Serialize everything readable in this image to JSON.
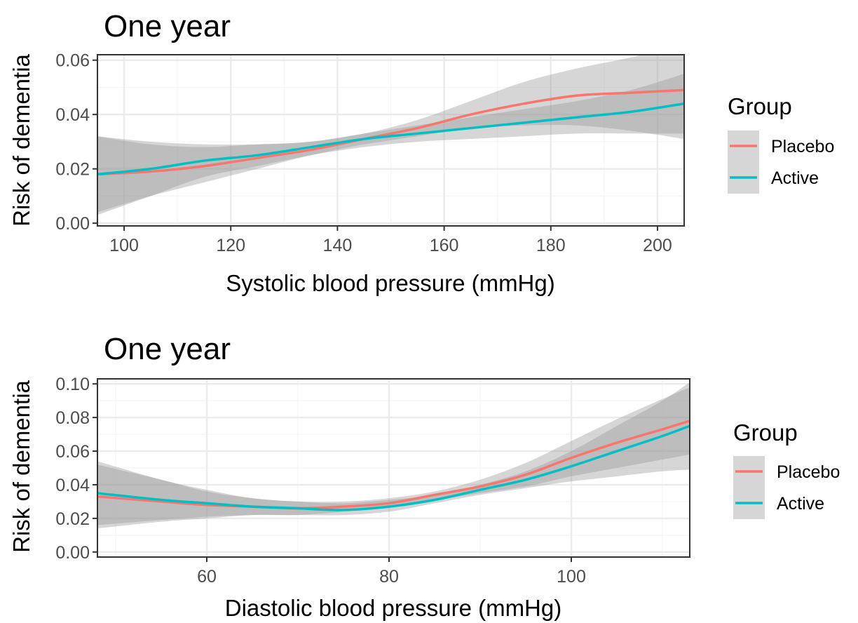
{
  "colors": {
    "placebo": "#F8766D",
    "active": "#00BFC4",
    "ribbon": "#999999",
    "grid_major": "#EBEBEB",
    "grid_minor": "#F5F5F5",
    "border": "#333333"
  },
  "chart_data": [
    {
      "type": "line",
      "title": "One year",
      "xlabel": "Systolic blood pressure (mmHg)",
      "ylabel": "Risk of dementia",
      "xlim": [
        95,
        205
      ],
      "ylim": [
        -0.001,
        0.062
      ],
      "xticks": [
        100,
        120,
        140,
        160,
        180,
        200
      ],
      "xtick_labels": [
        "100",
        "120",
        "140",
        "160",
        "180",
        "200"
      ],
      "yticks": [
        0.0,
        0.02,
        0.04,
        0.06
      ],
      "ytick_labels": [
        "0.00",
        "0.02",
        "0.04",
        "0.06"
      ],
      "grid": true,
      "legend": {
        "title": "Group",
        "position": "right",
        "entries": [
          "Placebo",
          "Active"
        ]
      },
      "x": [
        95,
        105,
        115,
        125,
        135,
        145,
        155,
        165,
        175,
        185,
        195,
        205
      ],
      "series": [
        {
          "name": "Placebo",
          "values": [
            0.018,
            0.019,
            0.021,
            0.024,
            0.027,
            0.031,
            0.035,
            0.04,
            0.044,
            0.047,
            0.048,
            0.049
          ],
          "lower": [
            0.004,
            0.01,
            0.015,
            0.02,
            0.025,
            0.029,
            0.032,
            0.035,
            0.036,
            0.036,
            0.034,
            0.031
          ],
          "upper": [
            0.032,
            0.029,
            0.028,
            0.029,
            0.03,
            0.033,
            0.038,
            0.045,
            0.052,
            0.057,
            0.061,
            0.066
          ]
        },
        {
          "name": "Active",
          "values": [
            0.018,
            0.02,
            0.023,
            0.025,
            0.028,
            0.031,
            0.033,
            0.035,
            0.037,
            0.039,
            0.041,
            0.044
          ],
          "lower": [
            0.003,
            0.01,
            0.017,
            0.021,
            0.025,
            0.028,
            0.03,
            0.031,
            0.032,
            0.033,
            0.033,
            0.033
          ],
          "upper": [
            0.032,
            0.03,
            0.029,
            0.029,
            0.03,
            0.033,
            0.036,
            0.039,
            0.042,
            0.045,
            0.049,
            0.055
          ]
        }
      ]
    },
    {
      "type": "line",
      "title": "One year",
      "xlabel": "Diastolic blood pressure (mmHg)",
      "ylabel": "Risk of dementia",
      "xlim": [
        48,
        113
      ],
      "ylim": [
        -0.003,
        0.103
      ],
      "xticks": [
        60,
        80,
        100
      ],
      "xtick_labels": [
        "60",
        "80",
        "100"
      ],
      "yticks": [
        0.0,
        0.02,
        0.04,
        0.06,
        0.08,
        0.1
      ],
      "ytick_labels": [
        "0.00",
        "0.02",
        "0.04",
        "0.06",
        "0.08",
        "0.10"
      ],
      "grid": true,
      "legend": {
        "title": "Group",
        "position": "right",
        "entries": [
          "Placebo",
          "Active"
        ]
      },
      "x": [
        48,
        55,
        60,
        65,
        70,
        75,
        80,
        85,
        90,
        95,
        100,
        105,
        110,
        113
      ],
      "series": [
        {
          "name": "Placebo",
          "values": [
            0.033,
            0.03,
            0.028,
            0.027,
            0.026,
            0.027,
            0.029,
            0.034,
            0.039,
            0.046,
            0.056,
            0.065,
            0.073,
            0.078
          ],
          "lower": [
            0.014,
            0.018,
            0.02,
            0.022,
            0.022,
            0.024,
            0.027,
            0.031,
            0.035,
            0.039,
            0.045,
            0.05,
            0.055,
            0.058
          ],
          "upper": [
            0.052,
            0.043,
            0.036,
            0.032,
            0.03,
            0.03,
            0.032,
            0.036,
            0.043,
            0.053,
            0.066,
            0.079,
            0.091,
            0.098
          ]
        },
        {
          "name": "Active",
          "values": [
            0.035,
            0.031,
            0.029,
            0.027,
            0.026,
            0.025,
            0.027,
            0.031,
            0.037,
            0.043,
            0.051,
            0.06,
            0.069,
            0.075
          ],
          "lower": [
            0.016,
            0.019,
            0.021,
            0.022,
            0.022,
            0.022,
            0.024,
            0.029,
            0.034,
            0.038,
            0.042,
            0.045,
            0.048,
            0.049
          ],
          "upper": [
            0.054,
            0.043,
            0.037,
            0.032,
            0.03,
            0.029,
            0.031,
            0.034,
            0.04,
            0.048,
            0.06,
            0.075,
            0.09,
            0.101
          ]
        }
      ]
    }
  ]
}
